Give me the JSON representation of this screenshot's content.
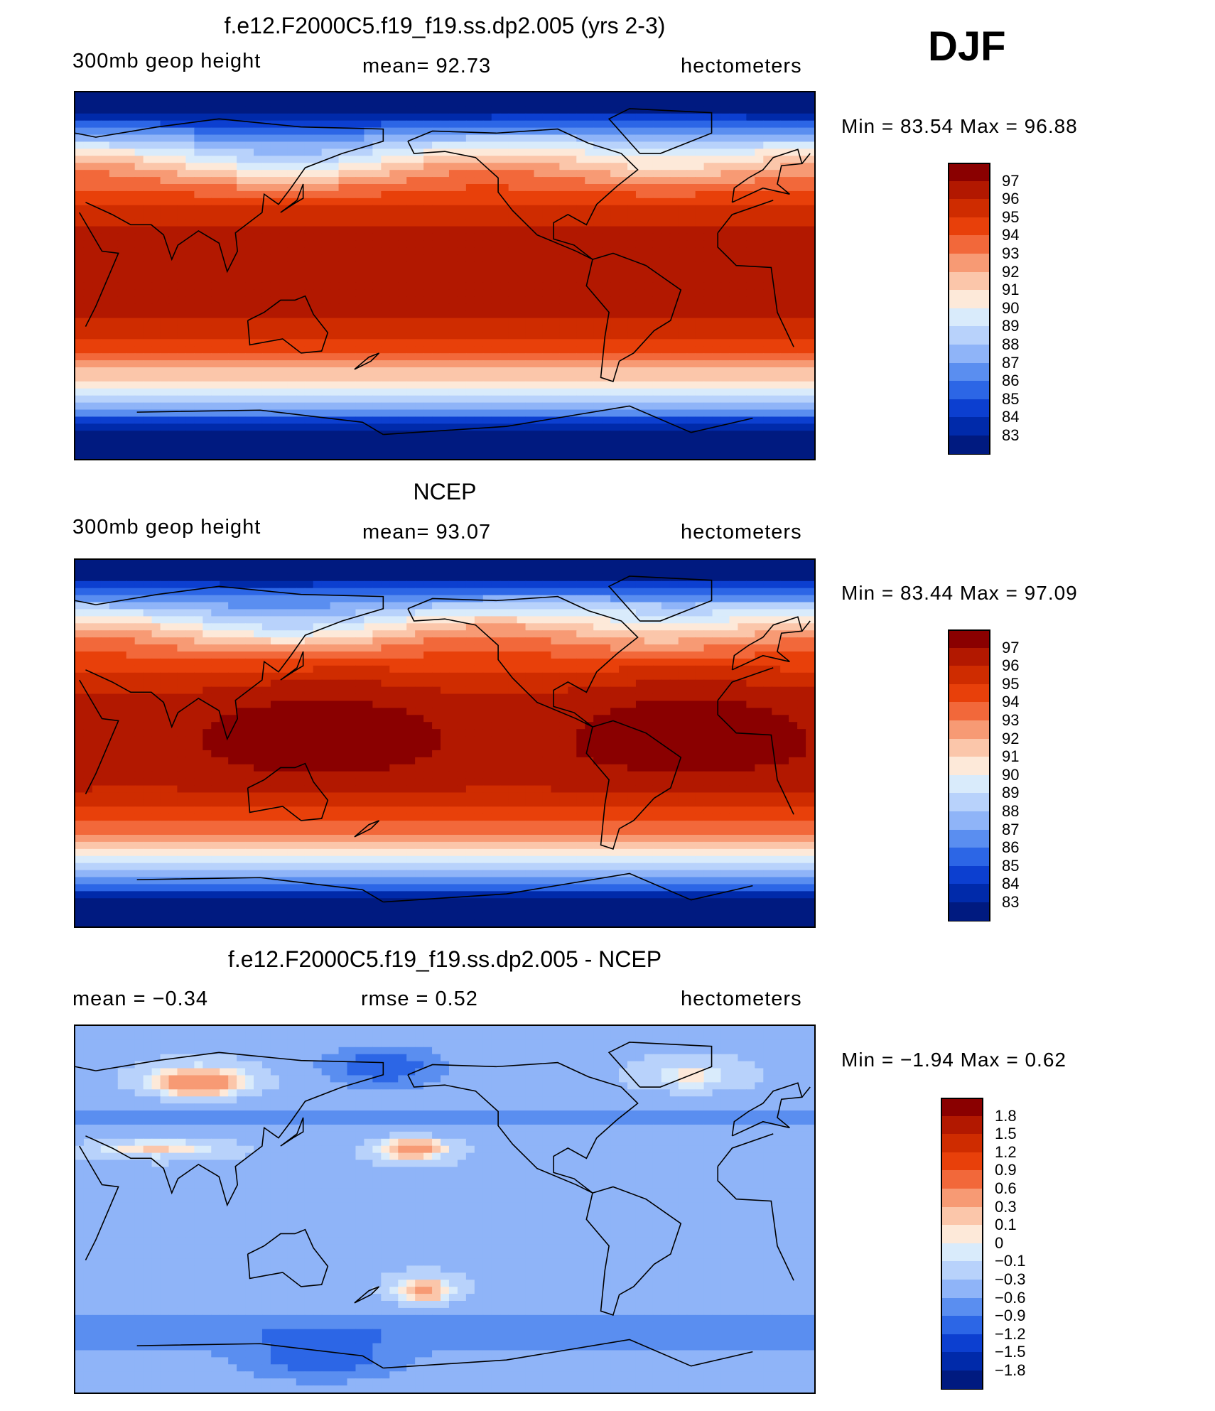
{
  "season": "DJF",
  "panels": [
    {
      "title": "f.e12.F2000C5.f19_f19.ss.dp2.005 (yrs 2-3)",
      "left_label": "300mb geop height",
      "center_label": "mean=   92.73",
      "right_label": "hectometers",
      "minmax": "Min =   83.54  Max =    96.88",
      "colorbar": {
        "labels": [
          "97",
          "96",
          "95",
          "94",
          "93",
          "92",
          "91",
          "90",
          "89",
          "88",
          "87",
          "86",
          "85",
          "84",
          "83"
        ],
        "colors": [
          "#8a0000",
          "#b21800",
          "#cf2c00",
          "#e8400a",
          "#f2683a",
          "#f79a74",
          "#fbc6aa",
          "#fde9d9",
          "#d9ebfb",
          "#b8d2fb",
          "#8fb4f8",
          "#5a8ef0",
          "#2c66e6",
          "#0c3fd0",
          "#002aaa",
          "#001a80"
        ]
      },
      "field": "model"
    },
    {
      "title": "NCEP",
      "left_label": "300mb geop height",
      "center_label": "mean=   93.07",
      "right_label": "hectometers",
      "minmax": "Min =   83.44  Max =    97.09",
      "colorbar": {
        "labels": [
          "97",
          "96",
          "95",
          "94",
          "93",
          "92",
          "91",
          "90",
          "89",
          "88",
          "87",
          "86",
          "85",
          "84",
          "83"
        ],
        "colors": [
          "#8a0000",
          "#b21800",
          "#cf2c00",
          "#e8400a",
          "#f2683a",
          "#f79a74",
          "#fbc6aa",
          "#fde9d9",
          "#d9ebfb",
          "#b8d2fb",
          "#8fb4f8",
          "#5a8ef0",
          "#2c66e6",
          "#0c3fd0",
          "#002aaa",
          "#001a80"
        ]
      },
      "field": "obs"
    },
    {
      "title": "f.e12.F2000C5.f19_f19.ss.dp2.005 - NCEP",
      "left_label": "mean =   −0.34",
      "center_label": "rmse =    0.52",
      "right_label": "hectometers",
      "minmax": "Min =   −1.94  Max =     0.62",
      "colorbar": {
        "labels": [
          "1.8",
          "1.5",
          "1.2",
          "0.9",
          "0.6",
          "0.3",
          "0.1",
          "0",
          "−0.1",
          "−0.3",
          "−0.6",
          "−0.9",
          "−1.2",
          "−1.5",
          "−1.8"
        ],
        "colors": [
          "#8a0000",
          "#b21800",
          "#cf2c00",
          "#e8400a",
          "#f2683a",
          "#f79a74",
          "#fbc6aa",
          "#fde9d9",
          "#d9ebfb",
          "#b8d2fb",
          "#8fb4f8",
          "#5a8ef0",
          "#2c66e6",
          "#0c3fd0",
          "#002aaa",
          "#001a80"
        ]
      },
      "field": "diff"
    }
  ]
}
